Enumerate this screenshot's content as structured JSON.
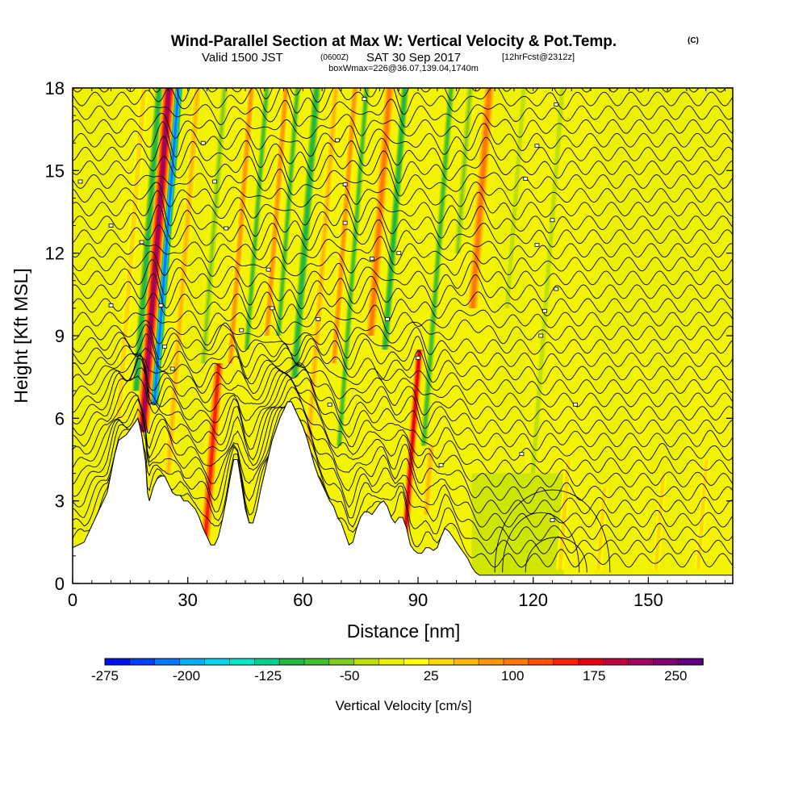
{
  "header": {
    "title": "Wind-Parallel Section at Max W: Vertical Velocity & Pot.Temp.",
    "copyright": "(C)",
    "subtitle_valid": "Valid 1500 JST",
    "subtitle_zulu": "(0600Z)",
    "subtitle_date": "SAT 30 Sep 2017",
    "subtitle_fcst": "[12hrFcst@2312z]",
    "subtitle2": "boxWmax=226@36.07,139.04,1740m"
  },
  "chart_data": {
    "type": "heatmap",
    "xlabel": "Distance [nm]",
    "ylabel": "Height [Kft MSL]",
    "xlim": [
      0,
      172
    ],
    "ylim": [
      0,
      18
    ],
    "xticks": [
      0,
      30,
      60,
      90,
      120,
      150
    ],
    "yticks": [
      0,
      3,
      6,
      9,
      12,
      15,
      18
    ],
    "colorbar": {
      "label": "Vertical Velocity [cm/s]",
      "min": -275,
      "max": 275,
      "tick_values": [
        -275,
        -200,
        -125,
        -50,
        25,
        100,
        175,
        250
      ],
      "tick_labels": [
        "-275",
        "-200",
        "-125",
        "-50",
        "25",
        "100",
        "175",
        "250"
      ],
      "colors": [
        "#0010e8",
        "#0040ff",
        "#0078ff",
        "#00b0ff",
        "#00d8f0",
        "#00e8c8",
        "#00d090",
        "#20b840",
        "#40c030",
        "#80cc20",
        "#c0e000",
        "#ecf000",
        "#ffff00",
        "#ffd800",
        "#ffb800",
        "#ff9800",
        "#ff7800",
        "#ff5000",
        "#ff2000",
        "#e80010",
        "#c00040",
        "#a00060",
        "#800070",
        "#600080"
      ]
    },
    "terrain": [
      [
        0,
        1.3
      ],
      [
        3,
        1.5
      ],
      [
        5,
        2.1
      ],
      [
        7,
        2.7
      ],
      [
        9,
        3.3
      ],
      [
        10,
        4.0
      ],
      [
        11,
        4.7
      ],
      [
        12,
        5.2
      ],
      [
        14,
        5.4
      ],
      [
        16,
        5.8
      ],
      [
        17,
        6.0
      ],
      [
        18,
        5.4
      ],
      [
        19,
        4.4
      ],
      [
        19.5,
        3.3
      ],
      [
        20,
        3.0
      ],
      [
        21,
        3.5
      ],
      [
        22,
        3.8
      ],
      [
        23,
        3.9
      ],
      [
        24,
        3.9
      ],
      [
        25,
        3.6
      ],
      [
        26,
        3.3
      ],
      [
        27,
        3.2
      ],
      [
        28,
        3.2
      ],
      [
        29,
        3.0
      ],
      [
        30,
        3.0
      ],
      [
        32,
        2.7
      ],
      [
        33,
        2.4
      ],
      [
        34,
        2.0
      ],
      [
        35,
        1.7
      ],
      [
        36,
        1.4
      ],
      [
        37,
        1.4
      ],
      [
        38,
        1.7
      ],
      [
        39,
        2.3
      ],
      [
        40,
        3.0
      ],
      [
        41,
        3.8
      ],
      [
        42,
        4.5
      ],
      [
        43,
        4.5
      ],
      [
        44,
        3.6
      ],
      [
        45,
        2.7
      ],
      [
        46,
        2.2
      ],
      [
        47,
        2.2
      ],
      [
        48,
        2.7
      ],
      [
        49,
        3.4
      ],
      [
        50,
        4.0
      ],
      [
        51,
        4.6
      ],
      [
        52,
        5.2
      ],
      [
        53,
        5.6
      ],
      [
        54,
        6.0
      ],
      [
        55,
        6.3
      ],
      [
        56,
        6.6
      ],
      [
        57,
        6.6
      ],
      [
        58,
        6.3
      ],
      [
        59,
        6.0
      ],
      [
        60,
        5.7
      ],
      [
        61,
        5.3
      ],
      [
        62,
        4.8
      ],
      [
        63,
        4.3
      ],
      [
        64,
        3.9
      ],
      [
        65,
        3.6
      ],
      [
        66,
        3.3
      ],
      [
        67,
        3.0
      ],
      [
        68,
        2.8
      ],
      [
        69,
        2.4
      ],
      [
        70,
        2.2
      ],
      [
        71,
        1.8
      ],
      [
        72,
        1.4
      ],
      [
        73,
        1.5
      ],
      [
        74,
        2.0
      ],
      [
        75,
        2.4
      ],
      [
        76,
        2.6
      ],
      [
        77,
        2.6
      ],
      [
        78,
        2.5
      ],
      [
        79,
        2.7
      ],
      [
        80,
        2.9
      ],
      [
        81,
        3.0
      ],
      [
        82,
        2.8
      ],
      [
        83,
        2.4
      ],
      [
        84,
        2.2
      ],
      [
        85,
        2.4
      ],
      [
        86,
        2.4
      ],
      [
        87,
        2.0
      ],
      [
        88,
        1.4
      ],
      [
        89,
        1.2
      ],
      [
        90,
        1.1
      ],
      [
        91,
        1.1
      ],
      [
        92,
        1.3
      ],
      [
        93,
        1.3
      ],
      [
        94,
        1.2
      ],
      [
        95,
        1.3
      ],
      [
        96,
        1.7
      ],
      [
        97,
        2.0
      ],
      [
        98,
        1.9
      ],
      [
        99,
        1.7
      ],
      [
        100,
        1.5
      ],
      [
        101,
        1.3
      ],
      [
        102,
        1.1
      ],
      [
        103,
        0.9
      ],
      [
        104,
        0.6
      ],
      [
        105,
        0.4
      ],
      [
        106,
        0.3
      ],
      [
        172,
        0.3
      ]
    ],
    "updrafts": [
      {
        "x": 18.5,
        "dx": 1.5,
        "w": 210,
        "top": 18,
        "bottom": 5.5
      },
      {
        "x": 26,
        "dx": 1.0,
        "w": 60,
        "top": 18,
        "bottom": 4.0
      },
      {
        "x": 37,
        "dx": 1.2,
        "w": 140,
        "top": 8.0,
        "bottom": 1.5
      },
      {
        "x": 40,
        "dx": 1.0,
        "w": 70,
        "top": 18,
        "bottom": 8.0
      },
      {
        "x": 49,
        "dx": 1.0,
        "w": 80,
        "top": 18,
        "bottom": 9.0
      },
      {
        "x": 62,
        "dx": 1.0,
        "w": 60,
        "top": 18,
        "bottom": 5.0
      },
      {
        "x": 67,
        "dx": 1.0,
        "w": 90,
        "top": 18,
        "bottom": 8.0
      },
      {
        "x": 76,
        "dx": 1.1,
        "w": 110,
        "top": 18,
        "bottom": 9.0
      },
      {
        "x": 89,
        "dx": 1.0,
        "w": 170,
        "top": 8.5,
        "bottom": 1.5
      },
      {
        "x": 102,
        "dx": 1.2,
        "w": 110,
        "top": 18,
        "bottom": 10.0
      },
      {
        "x": 94,
        "dx": 1.0,
        "w": 60,
        "top": 5.0,
        "bottom": 2.5
      },
      {
        "x": 130,
        "dx": 0.9,
        "w": 45,
        "top": 4.5,
        "bottom": 0.5
      },
      {
        "x": 140,
        "dx": 0.8,
        "w": 40,
        "top": 3.5,
        "bottom": 0.5
      },
      {
        "x": 155,
        "dx": 0.8,
        "w": 40,
        "top": 4.0,
        "bottom": 0.5
      },
      {
        "x": 166,
        "dx": 0.8,
        "w": 35,
        "top": 4.5,
        "bottom": 0.5
      },
      {
        "x": 12,
        "dx": 1.0,
        "w": 35,
        "top": 18,
        "bottom": 6.0
      }
    ],
    "downdrafts": [
      {
        "x": 21,
        "dx": 1.0,
        "w": -215,
        "top": 18,
        "bottom": 6.5
      },
      {
        "x": 16,
        "dx": 1.0,
        "w": -100,
        "top": 18,
        "bottom": 7.0
      },
      {
        "x": 33,
        "dx": 0.9,
        "w": -60,
        "top": 18,
        "bottom": 8.0
      },
      {
        "x": 44,
        "dx": 0.9,
        "w": -80,
        "top": 18,
        "bottom": 8.5
      },
      {
        "x": 52,
        "dx": 0.9,
        "w": -90,
        "top": 18,
        "bottom": 9.0
      },
      {
        "x": 57,
        "dx": 1.0,
        "w": -110,
        "top": 18,
        "bottom": 7.5
      },
      {
        "x": 70,
        "dx": 0.9,
        "w": -80,
        "top": 18,
        "bottom": 5.0
      },
      {
        "x": 80,
        "dx": 0.9,
        "w": -100,
        "top": 18,
        "bottom": 8.5
      },
      {
        "x": 92,
        "dx": 1.0,
        "w": -90,
        "top": 18,
        "bottom": 5.0
      },
      {
        "x": 111,
        "dx": 0.9,
        "w": -45,
        "top": 18,
        "bottom": 10.0
      },
      {
        "x": 121,
        "dx": 0.9,
        "w": -40,
        "top": 18,
        "bottom": 4.0
      },
      {
        "x": 97,
        "dx": 0.9,
        "w": -50,
        "top": 18,
        "bottom": 12.0
      }
    ],
    "isentropes": {
      "label_dots": [
        [
          2,
          14.6
        ],
        [
          10,
          13.0
        ],
        [
          10,
          10.1
        ],
        [
          18,
          12.4
        ],
        [
          23,
          10.1
        ],
        [
          24,
          8.6
        ],
        [
          26,
          7.8
        ],
        [
          34,
          16.0
        ],
        [
          37,
          14.6
        ],
        [
          40,
          12.9
        ],
        [
          44,
          9.2
        ],
        [
          51,
          11.4
        ],
        [
          52,
          10.0
        ],
        [
          64,
          9.6
        ],
        [
          67,
          6.5
        ],
        [
          69,
          16.1
        ],
        [
          71,
          14.5
        ],
        [
          71,
          13.1
        ],
        [
          76,
          17.6
        ],
        [
          78,
          11.8
        ],
        [
          82,
          9.6
        ],
        [
          85,
          12.0
        ],
        [
          90,
          8.2
        ],
        [
          96,
          4.3
        ],
        [
          118,
          14.7
        ],
        [
          121,
          15.9
        ],
        [
          121,
          12.3
        ],
        [
          122,
          9.0
        ],
        [
          123,
          9.9
        ],
        [
          125,
          13.2
        ],
        [
          126,
          10.7
        ],
        [
          126,
          17.4
        ],
        [
          131,
          6.5
        ],
        [
          125,
          2.3
        ],
        [
          117,
          4.7
        ]
      ]
    }
  }
}
